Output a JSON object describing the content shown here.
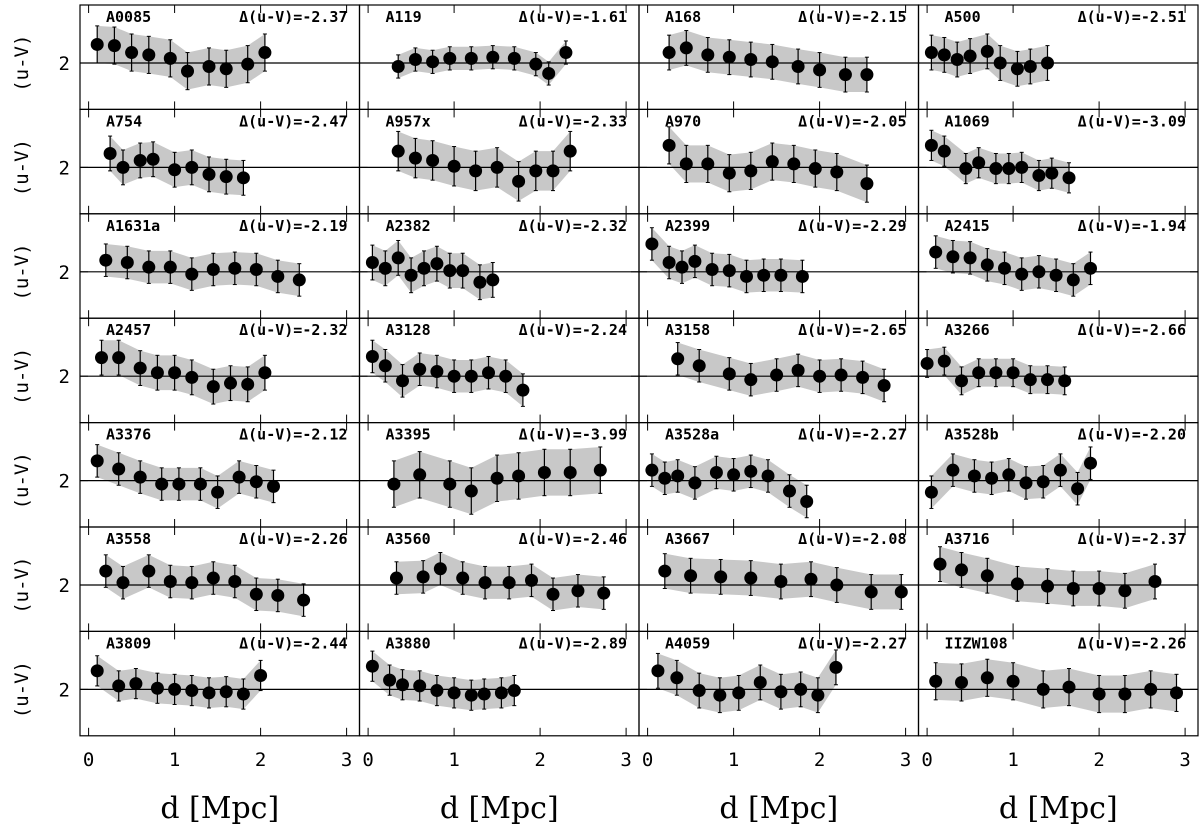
{
  "chart_data": [
    {
      "type": "scatter",
      "title": "A0085",
      "annotation": "Δ(u-V)=-2.37",
      "x": [
        0.1,
        0.3,
        0.5,
        0.7,
        0.95,
        1.15,
        1.4,
        1.6,
        1.85,
        2.05
      ],
      "values": [
        2.16,
        2.15,
        2.09,
        2.07,
        2.04,
        1.93,
        1.97,
        1.95,
        1.99,
        2.09
      ],
      "error": 0.16,
      "hline": 2,
      "xlim": [
        -0.1,
        3.15
      ],
      "ylim": [
        1.6,
        2.5
      ],
      "yticks": [
        2
      ],
      "ylabel": "(u-V)"
    },
    {
      "type": "scatter",
      "title": "A119",
      "annotation": "Δ(u-V)=-1.61",
      "x": [
        0.35,
        0.55,
        0.75,
        0.95,
        1.2,
        1.45,
        1.7,
        1.95,
        2.1,
        2.3
      ],
      "values": [
        1.97,
        2.03,
        2.01,
        2.04,
        2.04,
        2.05,
        2.04,
        1.99,
        1.91,
        2.09
      ],
      "error": 0.1,
      "hline": 2,
      "xlim": [
        -0.1,
        3.15
      ],
      "ylim": [
        1.6,
        2.5
      ]
    },
    {
      "type": "scatter",
      "title": "A168",
      "annotation": "Δ(u-V)=-2.15",
      "x": [
        0.25,
        0.45,
        0.7,
        0.95,
        1.2,
        1.45,
        1.75,
        2.0,
        2.3,
        2.55
      ],
      "values": [
        2.09,
        2.13,
        2.07,
        2.05,
        2.03,
        2.01,
        1.97,
        1.94,
        1.9,
        1.9
      ],
      "error": 0.15,
      "hline": 2,
      "xlim": [
        -0.1,
        3.15
      ],
      "ylim": [
        1.6,
        2.5
      ]
    },
    {
      "type": "scatter",
      "title": "A500",
      "annotation": "Δ(u-V)=-2.51",
      "x": [
        0.05,
        0.2,
        0.35,
        0.5,
        0.7,
        0.85,
        1.05,
        1.2,
        1.4
      ],
      "values": [
        2.09,
        2.07,
        2.03,
        2.06,
        2.1,
        2.0,
        1.95,
        1.97,
        2.0
      ],
      "error": 0.15,
      "hline": 2,
      "xlim": [
        -0.1,
        3.15
      ],
      "ylim": [
        1.6,
        2.5
      ]
    },
    {
      "type": "scatter",
      "title": "A754",
      "annotation": "Δ(u-V)=-2.47",
      "x": [
        0.25,
        0.4,
        0.6,
        0.75,
        1.0,
        1.2,
        1.4,
        1.6,
        1.8
      ],
      "values": [
        2.12,
        2.0,
        2.06,
        2.07,
        1.98,
        2.0,
        1.94,
        1.92,
        1.91
      ],
      "error": 0.15,
      "hline": 2,
      "xlim": [
        -0.1,
        3.15
      ],
      "ylim": [
        1.6,
        2.5
      ],
      "yticks": [
        2
      ],
      "ylabel": "(u-V)"
    },
    {
      "type": "scatter",
      "title": "A957x",
      "annotation": "Δ(u-V)=-2.33",
      "x": [
        0.35,
        0.55,
        0.75,
        1.0,
        1.25,
        1.5,
        1.75,
        1.95,
        2.15,
        2.35
      ],
      "values": [
        2.14,
        2.08,
        2.06,
        2.01,
        1.97,
        2.0,
        1.88,
        1.97,
        1.97,
        2.14
      ],
      "error": 0.17,
      "hline": 2,
      "xlim": [
        -0.1,
        3.15
      ],
      "ylim": [
        1.6,
        2.5
      ]
    },
    {
      "type": "scatter",
      "title": "A970",
      "annotation": "Δ(u-V)=-2.05",
      "x": [
        0.25,
        0.45,
        0.7,
        0.95,
        1.2,
        1.45,
        1.7,
        1.95,
        2.2,
        2.55
      ],
      "values": [
        2.19,
        2.03,
        2.03,
        1.95,
        1.97,
        2.05,
        2.03,
        1.99,
        1.96,
        1.86
      ],
      "error": 0.16,
      "hline": 2,
      "xlim": [
        -0.1,
        3.15
      ],
      "ylim": [
        1.6,
        2.5
      ]
    },
    {
      "type": "scatter",
      "title": "A1069",
      "annotation": "Δ(u-V)=-3.09",
      "x": [
        0.05,
        0.2,
        0.45,
        0.6,
        0.8,
        0.95,
        1.1,
        1.3,
        1.45,
        1.65
      ],
      "values": [
        2.19,
        2.14,
        1.99,
        2.04,
        1.99,
        1.99,
        2.0,
        1.93,
        1.95,
        1.91
      ],
      "error": 0.13,
      "hline": 2,
      "xlim": [
        -0.1,
        3.15
      ],
      "ylim": [
        1.6,
        2.5
      ]
    },
    {
      "type": "scatter",
      "title": "A1631a",
      "annotation": "Δ(u-V)=-2.19",
      "x": [
        0.2,
        0.45,
        0.7,
        0.95,
        1.2,
        1.45,
        1.7,
        1.95,
        2.2,
        2.45
      ],
      "values": [
        2.1,
        2.08,
        2.04,
        2.04,
        1.98,
        2.02,
        2.03,
        2.02,
        1.96,
        1.93
      ],
      "error": 0.14,
      "hline": 2,
      "xlim": [
        -0.1,
        3.15
      ],
      "ylim": [
        1.6,
        2.5
      ],
      "yticks": [
        2
      ],
      "ylabel": "(u-V)"
    },
    {
      "type": "scatter",
      "title": "A2382",
      "annotation": "Δ(u-V)=-2.32",
      "x": [
        0.05,
        0.2,
        0.35,
        0.5,
        0.65,
        0.8,
        0.95,
        1.1,
        1.3,
        1.45
      ],
      "values": [
        2.08,
        2.03,
        2.12,
        1.97,
        2.03,
        2.07,
        2.01,
        2.01,
        1.91,
        1.93
      ],
      "error": 0.15,
      "hline": 2,
      "xlim": [
        -0.1,
        3.15
      ],
      "ylim": [
        1.6,
        2.5
      ]
    },
    {
      "type": "scatter",
      "title": "A2399",
      "annotation": "Δ(u-V)=-2.29",
      "x": [
        0.05,
        0.25,
        0.4,
        0.55,
        0.75,
        0.95,
        1.15,
        1.35,
        1.55,
        1.8
      ],
      "values": [
        2.24,
        2.08,
        2.04,
        2.09,
        2.02,
        2.01,
        1.96,
        1.97,
        1.97,
        1.96
      ],
      "error": 0.14,
      "hline": 2,
      "xlim": [
        -0.1,
        3.15
      ],
      "ylim": [
        1.6,
        2.5
      ]
    },
    {
      "type": "scatter",
      "title": "A2415",
      "annotation": "Δ(u-V)=-1.94",
      "x": [
        0.1,
        0.3,
        0.5,
        0.7,
        0.9,
        1.1,
        1.3,
        1.5,
        1.7,
        1.9
      ],
      "values": [
        2.17,
        2.13,
        2.12,
        2.06,
        2.03,
        1.98,
        2.0,
        1.97,
        1.93,
        2.03
      ],
      "error": 0.14,
      "hline": 2,
      "xlim": [
        -0.1,
        3.15
      ],
      "ylim": [
        1.6,
        2.5
      ]
    },
    {
      "type": "scatter",
      "title": "A2457",
      "annotation": "Δ(u-V)=-2.32",
      "x": [
        0.15,
        0.35,
        0.6,
        0.8,
        1.0,
        1.2,
        1.45,
        1.65,
        1.85,
        2.05
      ],
      "values": [
        2.16,
        2.16,
        2.07,
        2.03,
        2.03,
        1.99,
        1.91,
        1.94,
        1.93,
        2.03
      ],
      "error": 0.15,
      "hline": 2,
      "xlim": [
        -0.1,
        3.15
      ],
      "ylim": [
        1.6,
        2.5
      ],
      "yticks": [
        2
      ],
      "ylabel": "(u-V)"
    },
    {
      "type": "scatter",
      "title": "A3128",
      "annotation": "Δ(u-V)=-2.24",
      "x": [
        0.05,
        0.2,
        0.4,
        0.6,
        0.8,
        1.0,
        1.2,
        1.4,
        1.6,
        1.8
      ],
      "values": [
        2.17,
        2.09,
        1.96,
        2.06,
        2.04,
        2.0,
        2.0,
        2.03,
        2.0,
        1.88
      ],
      "error": 0.14,
      "hline": 2,
      "xlim": [
        -0.1,
        3.15
      ],
      "ylim": [
        1.6,
        2.5
      ]
    },
    {
      "type": "scatter",
      "title": "A3158",
      "annotation": "Δ(u-V)=-2.65",
      "x": [
        0.35,
        0.6,
        0.95,
        1.2,
        1.5,
        1.75,
        2.0,
        2.25,
        2.5,
        2.75
      ],
      "values": [
        2.15,
        2.09,
        2.02,
        1.97,
        2.01,
        2.05,
        2.0,
        2.01,
        1.99,
        1.92
      ],
      "error": 0.14,
      "hline": 2,
      "xlim": [
        -0.1,
        3.15
      ],
      "ylim": [
        1.6,
        2.5
      ]
    },
    {
      "type": "scatter",
      "title": "A3266",
      "annotation": "Δ(u-V)=-2.66",
      "x": [
        0.0,
        0.2,
        0.4,
        0.6,
        0.8,
        1.0,
        1.2,
        1.4,
        1.6
      ],
      "values": [
        2.11,
        2.13,
        1.96,
        2.03,
        2.03,
        2.03,
        1.97,
        1.97,
        1.96
      ],
      "error": 0.12,
      "hline": 2,
      "xlim": [
        -0.1,
        3.15
      ],
      "ylim": [
        1.6,
        2.5
      ]
    },
    {
      "type": "scatter",
      "title": "A3376",
      "annotation": "Δ(u-V)=-2.12",
      "x": [
        0.1,
        0.35,
        0.6,
        0.85,
        1.05,
        1.3,
        1.5,
        1.75,
        1.95,
        2.15
      ],
      "values": [
        2.17,
        2.1,
        2.03,
        1.97,
        1.97,
        1.97,
        1.9,
        2.03,
        1.99,
        1.95
      ],
      "error": 0.14,
      "hline": 2,
      "xlim": [
        -0.1,
        3.15
      ],
      "ylim": [
        1.6,
        2.5
      ],
      "yticks": [
        2
      ],
      "ylabel": "(u-V)"
    },
    {
      "type": "scatter",
      "title": "A3395",
      "annotation": "Δ(u-V)=-3.99",
      "x": [
        0.3,
        0.6,
        0.95,
        1.2,
        1.5,
        1.75,
        2.05,
        2.35,
        2.7
      ],
      "values": [
        1.97,
        2.05,
        1.97,
        1.91,
        2.02,
        2.04,
        2.07,
        2.07,
        2.09
      ],
      "error": 0.2,
      "hline": 2,
      "xlim": [
        -0.1,
        3.15
      ],
      "ylim": [
        1.6,
        2.5
      ]
    },
    {
      "type": "scatter",
      "title": "A3528a",
      "annotation": "Δ(u-V)=-2.27",
      "x": [
        0.05,
        0.2,
        0.35,
        0.55,
        0.8,
        1.0,
        1.2,
        1.4,
        1.65,
        1.85
      ],
      "values": [
        2.09,
        2.02,
        2.04,
        1.98,
        2.07,
        2.05,
        2.08,
        2.04,
        1.91,
        1.82
      ],
      "error": 0.14,
      "hline": 2,
      "xlim": [
        -0.1,
        3.15
      ],
      "ylim": [
        1.6,
        2.5
      ]
    },
    {
      "type": "scatter",
      "title": "A3528b",
      "annotation": "Δ(u-V)=-2.20",
      "x": [
        0.05,
        0.3,
        0.55,
        0.75,
        0.95,
        1.15,
        1.35,
        1.55,
        1.75,
        1.9
      ],
      "values": [
        1.9,
        2.09,
        2.04,
        2.02,
        2.05,
        1.98,
        1.99,
        2.09,
        1.93,
        2.15
      ],
      "error": 0.14,
      "hline": 2,
      "xlim": [
        -0.1,
        3.15
      ],
      "ylim": [
        1.6,
        2.5
      ]
    },
    {
      "type": "scatter",
      "title": "A3558",
      "annotation": "Δ(u-V)=-2.26",
      "x": [
        0.2,
        0.4,
        0.7,
        0.95,
        1.2,
        1.45,
        1.7,
        1.95,
        2.2,
        2.5
      ],
      "values": [
        2.12,
        2.02,
        2.12,
        2.03,
        2.02,
        2.06,
        2.03,
        1.92,
        1.91,
        1.87
      ],
      "error": 0.14,
      "hline": 2,
      "xlim": [
        -0.1,
        3.15
      ],
      "ylim": [
        1.6,
        2.5
      ],
      "yticks": [
        2
      ],
      "ylabel": "(u-V)"
    },
    {
      "type": "scatter",
      "title": "A3560",
      "annotation": "Δ(u-V)=-2.46",
      "x": [
        0.33,
        0.64,
        0.84,
        1.1,
        1.36,
        1.64,
        1.9,
        2.15,
        2.44,
        2.74
      ],
      "values": [
        2.06,
        2.07,
        2.14,
        2.06,
        2.02,
        2.02,
        2.04,
        1.92,
        1.95,
        1.93
      ],
      "error": 0.14,
      "hline": 2,
      "xlim": [
        -0.1,
        3.15
      ],
      "ylim": [
        1.6,
        2.5
      ]
    },
    {
      "type": "scatter",
      "title": "A3667",
      "annotation": "Δ(u-V)=-2.08",
      "x": [
        0.2,
        0.5,
        0.85,
        1.2,
        1.55,
        1.9,
        2.2,
        2.6,
        2.95
      ],
      "values": [
        2.12,
        2.08,
        2.07,
        2.06,
        2.03,
        2.05,
        2.0,
        1.94,
        1.94
      ],
      "error": 0.15,
      "hline": 2,
      "xlim": [
        -0.1,
        3.15
      ],
      "ylim": [
        1.6,
        2.5
      ]
    },
    {
      "type": "scatter",
      "title": "A3716",
      "annotation": "Δ(u-V)=-2.37",
      "x": [
        0.15,
        0.4,
        0.7,
        1.05,
        1.4,
        1.7,
        2.0,
        2.3,
        2.65
      ],
      "values": [
        2.18,
        2.13,
        2.08,
        2.01,
        1.99,
        1.97,
        1.97,
        1.95,
        2.03
      ],
      "error": 0.15,
      "hline": 2,
      "xlim": [
        -0.1,
        3.15
      ],
      "ylim": [
        1.6,
        2.5
      ]
    },
    {
      "type": "scatter",
      "title": "A3809",
      "annotation": "Δ(u-V)=-2.44",
      "x": [
        0.1,
        0.35,
        0.55,
        0.8,
        1.0,
        1.2,
        1.4,
        1.6,
        1.8,
        2.0
      ],
      "values": [
        2.16,
        2.03,
        2.05,
        2.01,
        2.0,
        1.99,
        1.97,
        1.98,
        1.96,
        2.12
      ],
      "error": 0.13,
      "hline": 2,
      "xlim": [
        -0.1,
        3.15
      ],
      "ylim": [
        1.6,
        2.5
      ],
      "yticks": [
        2
      ],
      "ylabel": "(u-V)",
      "xticks": [
        0,
        1,
        2,
        3
      ],
      "xlabel": "d [Mpc]"
    },
    {
      "type": "scatter",
      "title": "A3880",
      "annotation": "Δ(u-V)=-2.89",
      "x": [
        0.05,
        0.25,
        0.4,
        0.6,
        0.8,
        1.0,
        1.2,
        1.35,
        1.55,
        1.7
      ],
      "values": [
        2.2,
        2.08,
        2.04,
        2.03,
        1.99,
        1.97,
        1.95,
        1.96,
        1.97,
        1.99
      ],
      "error": 0.13,
      "hline": 2,
      "xlim": [
        -0.1,
        3.15
      ],
      "ylim": [
        1.6,
        2.5
      ],
      "xticks": [
        0,
        1,
        2,
        3
      ],
      "xlabel": "d [Mpc]"
    },
    {
      "type": "scatter",
      "title": "A4059",
      "annotation": "Δ(u-V)=-2.27",
      "x": [
        0.12,
        0.34,
        0.6,
        0.84,
        1.06,
        1.31,
        1.55,
        1.78,
        1.98,
        2.19
      ],
      "values": [
        2.16,
        2.1,
        1.99,
        1.95,
        1.97,
        2.06,
        1.98,
        2.0,
        1.95,
        2.19
      ],
      "error": 0.15,
      "hline": 2,
      "xlim": [
        -0.1,
        3.15
      ],
      "ylim": [
        1.6,
        2.5
      ],
      "xticks": [
        0,
        1,
        2,
        3
      ],
      "xlabel": "d [Mpc]"
    },
    {
      "type": "scatter",
      "title": "IIZW108",
      "annotation": "Δ(u-V)=-2.26",
      "x": [
        0.1,
        0.4,
        0.7,
        1.0,
        1.35,
        1.65,
        2.0,
        2.3,
        2.6,
        2.9
      ],
      "values": [
        2.07,
        2.06,
        2.1,
        2.07,
        2.0,
        2.02,
        1.96,
        1.96,
        2.0,
        1.97
      ],
      "error": 0.16,
      "hline": 2,
      "xlim": [
        -0.1,
        3.15
      ],
      "ylim": [
        1.6,
        2.5
      ],
      "xticks": [
        0,
        1,
        2,
        3
      ],
      "xlabel": "d [Mpc]"
    }
  ]
}
